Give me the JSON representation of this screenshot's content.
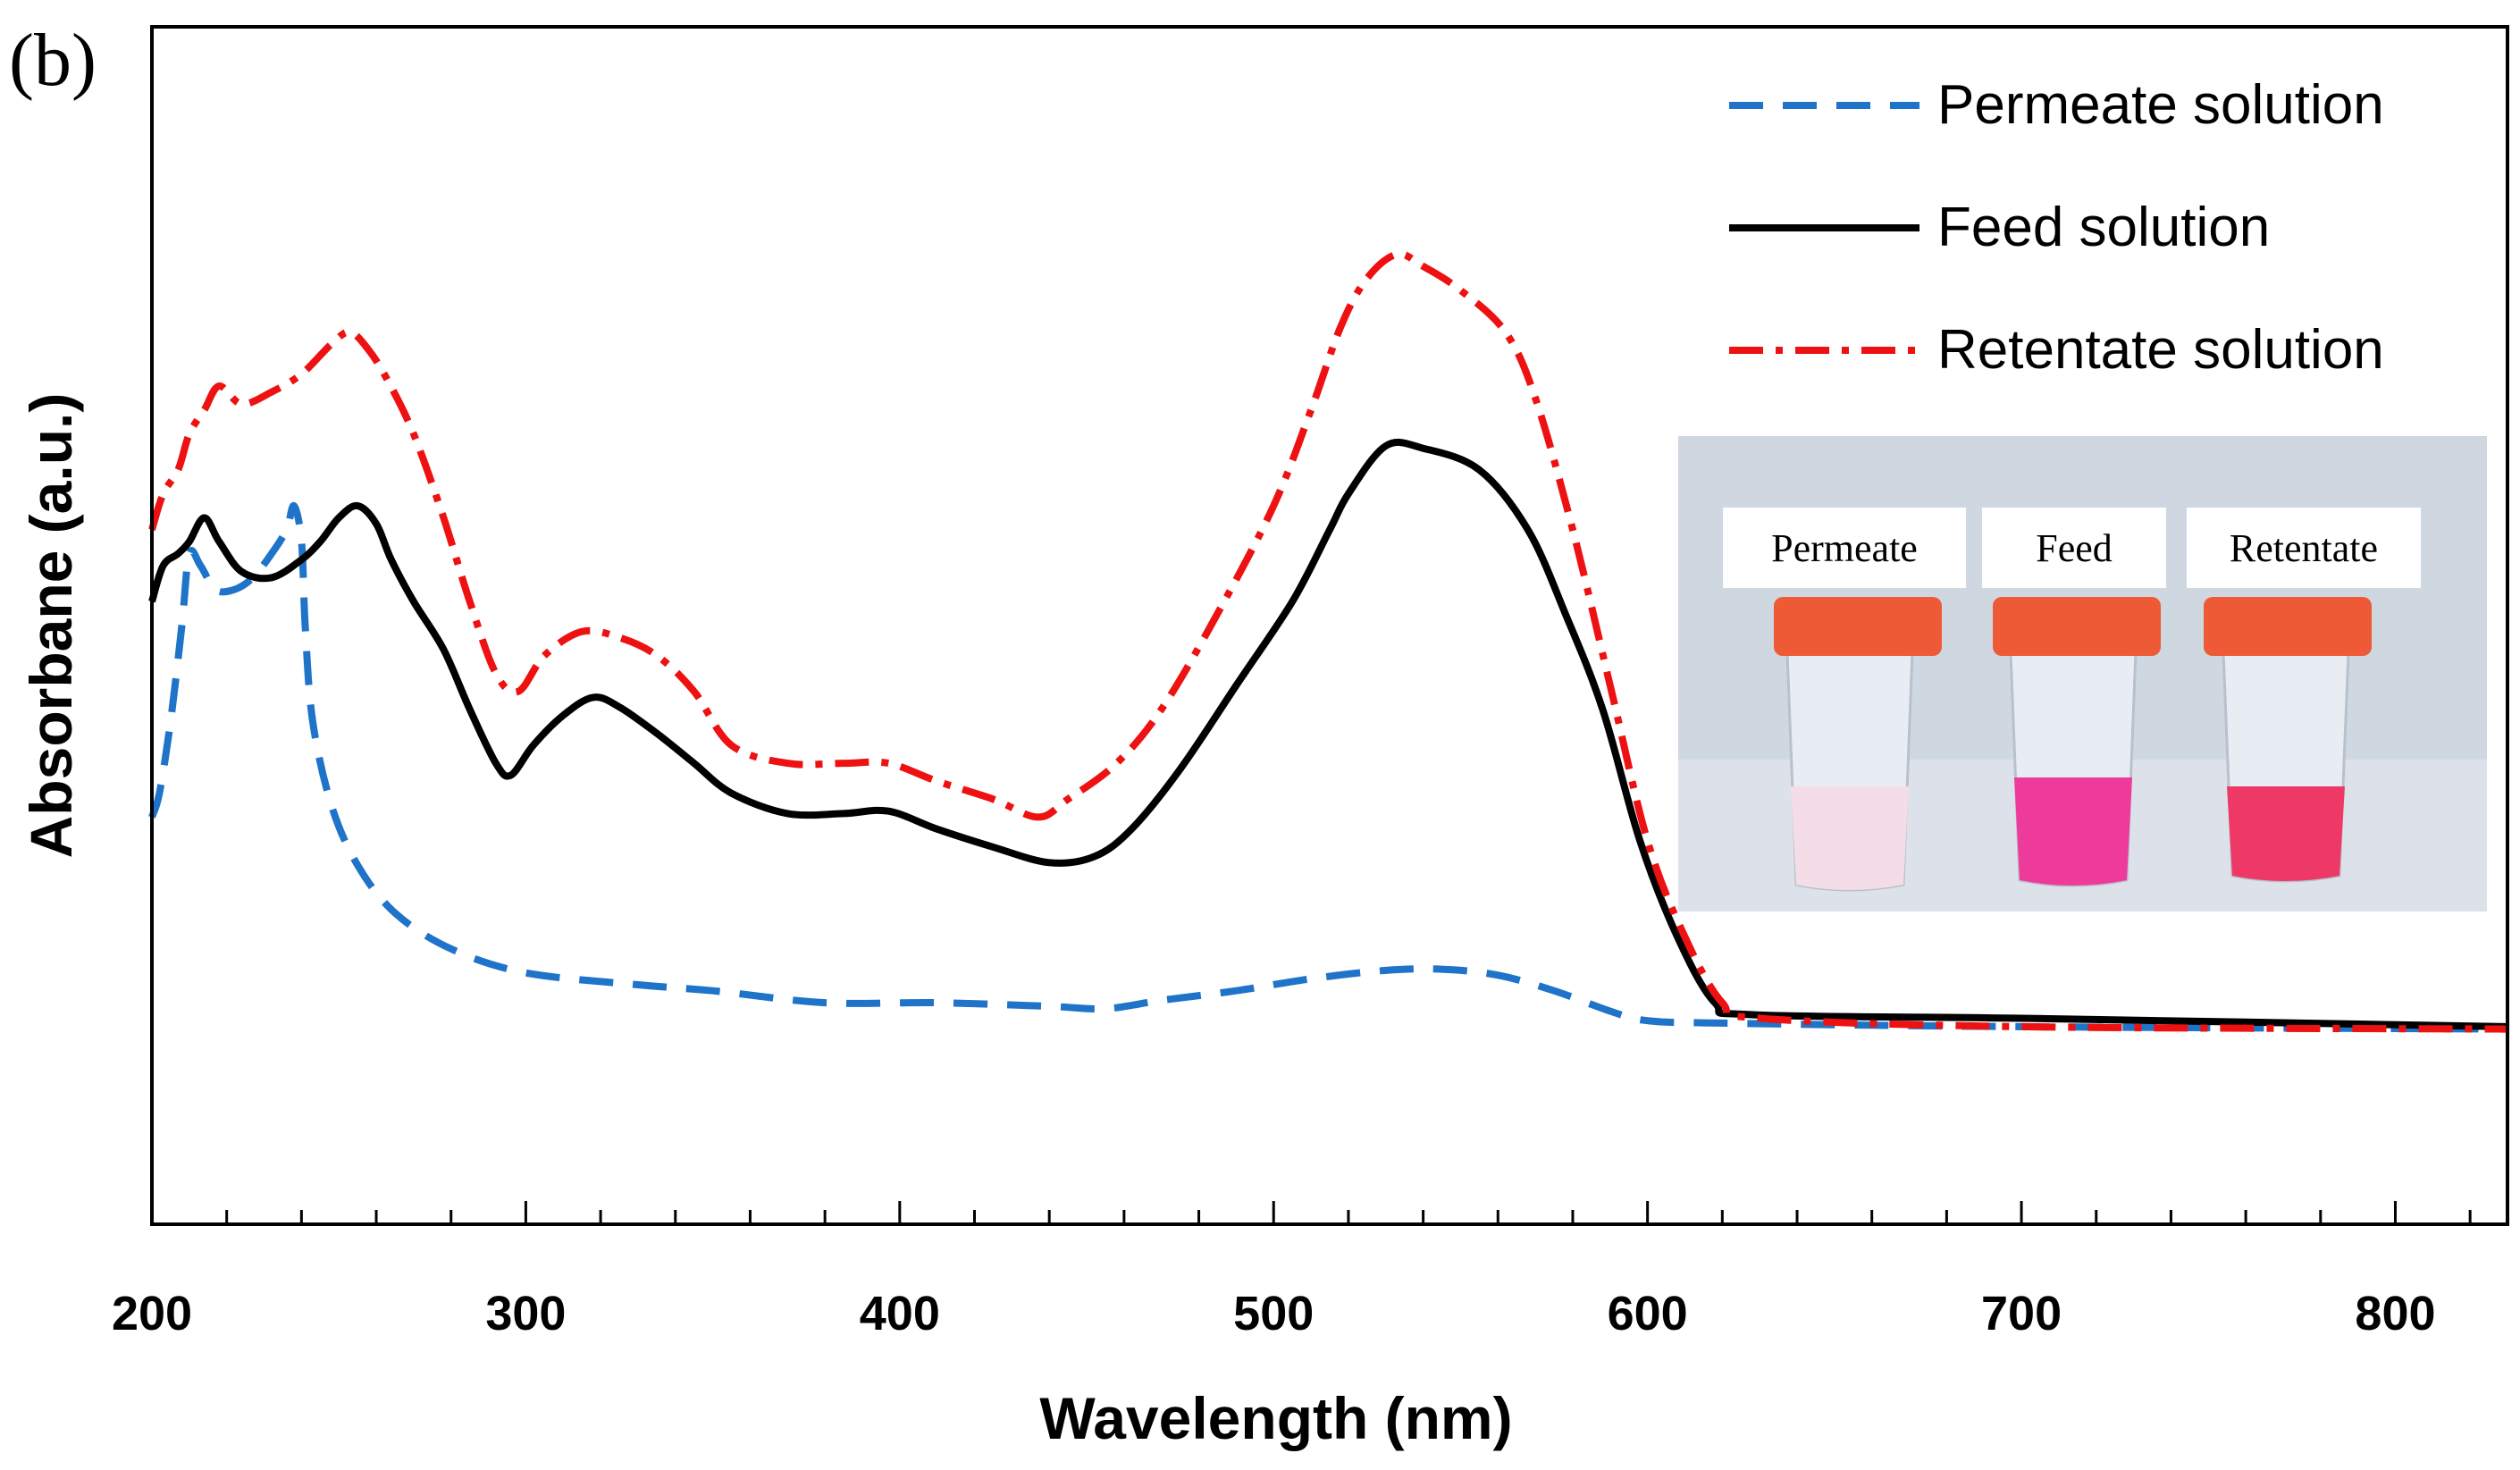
{
  "chart_data": {
    "type": "line",
    "panel_label": "(b)",
    "xlabel": "Wavelength (nm)",
    "ylabel": "Absorbane (a.u.)",
    "xlim": [
      200,
      830
    ],
    "ylim": [
      0,
      1.0
    ],
    "xticks": [
      200,
      300,
      400,
      500,
      600,
      700,
      800
    ],
    "minor_tick_step": 20,
    "grid": false,
    "legend_position": "top-right",
    "series": [
      {
        "name": "Permeate solution",
        "color": "#1f73c8",
        "dash": "dashed",
        "points": [
          [
            200,
            0.34
          ],
          [
            202,
            0.36
          ],
          [
            205,
            0.42
          ],
          [
            208,
            0.5
          ],
          [
            210,
            0.56
          ],
          [
            213,
            0.55
          ],
          [
            217,
            0.53
          ],
          [
            222,
            0.53
          ],
          [
            227,
            0.54
          ],
          [
            232,
            0.56
          ],
          [
            236,
            0.58
          ],
          [
            238,
            0.6
          ],
          [
            240,
            0.57
          ],
          [
            241,
            0.5
          ],
          [
            243,
            0.42
          ],
          [
            248,
            0.35
          ],
          [
            255,
            0.3
          ],
          [
            265,
            0.26
          ],
          [
            280,
            0.23
          ],
          [
            300,
            0.21
          ],
          [
            330,
            0.2
          ],
          [
            350,
            0.195
          ],
          [
            380,
            0.185
          ],
          [
            410,
            0.185
          ],
          [
            440,
            0.182
          ],
          [
            455,
            0.18
          ],
          [
            470,
            0.187
          ],
          [
            490,
            0.195
          ],
          [
            510,
            0.205
          ],
          [
            530,
            0.212
          ],
          [
            545,
            0.213
          ],
          [
            560,
            0.208
          ],
          [
            575,
            0.195
          ],
          [
            590,
            0.178
          ],
          [
            600,
            0.17
          ],
          [
            620,
            0.168
          ],
          [
            700,
            0.165
          ],
          [
            830,
            0.163
          ]
        ]
      },
      {
        "name": "Feed solution",
        "color": "#000000",
        "dash": "solid",
        "points": [
          [
            200,
            0.52
          ],
          [
            203,
            0.55
          ],
          [
            207,
            0.56
          ],
          [
            210,
            0.57
          ],
          [
            214,
            0.59
          ],
          [
            218,
            0.57
          ],
          [
            224,
            0.545
          ],
          [
            232,
            0.54
          ],
          [
            240,
            0.555
          ],
          [
            245,
            0.57
          ],
          [
            250,
            0.59
          ],
          [
            255,
            0.6
          ],
          [
            260,
            0.585
          ],
          [
            264,
            0.555
          ],
          [
            270,
            0.52
          ],
          [
            278,
            0.48
          ],
          [
            285,
            0.43
          ],
          [
            292,
            0.385
          ],
          [
            296,
            0.375
          ],
          [
            302,
            0.4
          ],
          [
            310,
            0.425
          ],
          [
            318,
            0.44
          ],
          [
            325,
            0.432
          ],
          [
            335,
            0.41
          ],
          [
            345,
            0.385
          ],
          [
            355,
            0.36
          ],
          [
            370,
            0.343
          ],
          [
            385,
            0.343
          ],
          [
            397,
            0.345
          ],
          [
            410,
            0.33
          ],
          [
            425,
            0.315
          ],
          [
            440,
            0.302
          ],
          [
            452,
            0.307
          ],
          [
            462,
            0.33
          ],
          [
            475,
            0.38
          ],
          [
            490,
            0.45
          ],
          [
            505,
            0.52
          ],
          [
            515,
            0.58
          ],
          [
            520,
            0.61
          ],
          [
            530,
            0.65
          ],
          [
            540,
            0.648
          ],
          [
            555,
            0.63
          ],
          [
            568,
            0.58
          ],
          [
            578,
            0.51
          ],
          [
            588,
            0.43
          ],
          [
            598,
            0.32
          ],
          [
            608,
            0.24
          ],
          [
            618,
            0.185
          ],
          [
            628,
            0.175
          ],
          [
            700,
            0.172
          ],
          [
            830,
            0.165
          ]
        ]
      },
      {
        "name": "Retentate solution",
        "color": "#ee1111",
        "dash": "dashdot",
        "points": [
          [
            200,
            0.58
          ],
          [
            203,
            0.61
          ],
          [
            207,
            0.63
          ],
          [
            210,
            0.66
          ],
          [
            214,
            0.68
          ],
          [
            218,
            0.7
          ],
          [
            224,
            0.685
          ],
          [
            232,
            0.695
          ],
          [
            240,
            0.71
          ],
          [
            248,
            0.735
          ],
          [
            253,
            0.745
          ],
          [
            258,
            0.73
          ],
          [
            263,
            0.705
          ],
          [
            270,
            0.66
          ],
          [
            278,
            0.59
          ],
          [
            285,
            0.52
          ],
          [
            292,
            0.46
          ],
          [
            298,
            0.445
          ],
          [
            305,
            0.475
          ],
          [
            315,
            0.495
          ],
          [
            325,
            0.49
          ],
          [
            335,
            0.475
          ],
          [
            345,
            0.445
          ],
          [
            355,
            0.4
          ],
          [
            370,
            0.385
          ],
          [
            385,
            0.385
          ],
          [
            397,
            0.385
          ],
          [
            410,
            0.37
          ],
          [
            425,
            0.355
          ],
          [
            437,
            0.34
          ],
          [
            445,
            0.355
          ],
          [
            458,
            0.385
          ],
          [
            470,
            0.43
          ],
          [
            485,
            0.51
          ],
          [
            500,
            0.6
          ],
          [
            510,
            0.68
          ],
          [
            518,
            0.75
          ],
          [
            525,
            0.79
          ],
          [
            533,
            0.81
          ],
          [
            540,
            0.8
          ],
          [
            550,
            0.78
          ],
          [
            562,
            0.745
          ],
          [
            570,
            0.69
          ],
          [
            580,
            0.58
          ],
          [
            590,
            0.45
          ],
          [
            600,
            0.32
          ],
          [
            610,
            0.24
          ],
          [
            620,
            0.185
          ],
          [
            630,
            0.172
          ],
          [
            700,
            0.165
          ],
          [
            830,
            0.163
          ]
        ]
      }
    ],
    "inset": {
      "labels": [
        "Permeate",
        "Feed",
        "Retentate"
      ],
      "liquid_colors": [
        "#f4dde6",
        "#ee3b9b",
        "#ee3865"
      ],
      "cap_color": "#ee5a36",
      "background": "#cfd7e1"
    }
  }
}
